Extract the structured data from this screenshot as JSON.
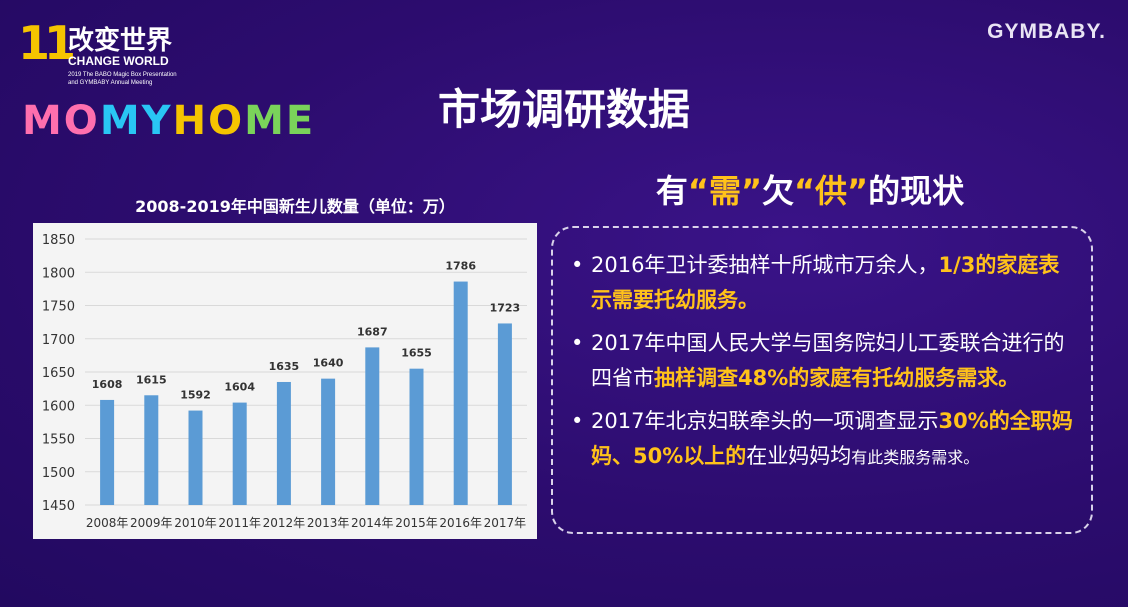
{
  "logo": {
    "number": "11",
    "cn_title": "改变世界",
    "en_title": "CHANGE WORLD",
    "sub_line1": "2019 The BABO Magic Box Presentation",
    "sub_line2": "and GYMBABY Annual Meeting",
    "momy_parts": [
      "MO",
      "MY",
      "HO",
      "ME"
    ],
    "colors": [
      "#ff6fae",
      "#29c6f4",
      "#f5c400",
      "#7ad35a"
    ]
  },
  "brand": "GYMBABY.",
  "main_title": "市场调研数据",
  "chart_data": {
    "type": "bar",
    "title": "2008-2019年中国新生儿数量（单位：万）",
    "categories": [
      "2008年",
      "2009年",
      "2010年",
      "2011年",
      "2012年",
      "2013年",
      "2014年",
      "2015年",
      "2016年",
      "2017年"
    ],
    "values": [
      1608,
      1615,
      1592,
      1604,
      1635,
      1640,
      1687,
      1655,
      1786,
      1723
    ],
    "yticks": [
      1450,
      1500,
      1550,
      1600,
      1650,
      1700,
      1750,
      1800,
      1850
    ],
    "ylim": [
      1450,
      1850
    ],
    "grid": true,
    "bar_color": "#5b9bd5"
  },
  "sub_heading": {
    "prefix": "有",
    "q1": "“需”",
    "middle": "欠",
    "q2": "“供”",
    "suffix": "的现状"
  },
  "bullets": [
    {
      "parts": [
        {
          "text": "2016年卫计委抽样十所城市万余人，",
          "style": "normal"
        },
        {
          "text": "1/3的家庭表示需要托幼服务。",
          "style": "hl"
        }
      ]
    },
    {
      "parts": [
        {
          "text": "2017年中国人民大学与国务院妇儿工委联合进行的四省市",
          "style": "normal"
        },
        {
          "text": "抽样调查48%的家庭有托幼服务需求。",
          "style": "hl"
        }
      ]
    },
    {
      "parts": [
        {
          "text": "2017年北京妇联牵头的一项调查显示",
          "style": "normal"
        },
        {
          "text": "30%的全职妈妈、50%以上的",
          "style": "hl"
        },
        {
          "text": "在业妈妈均",
          "style": "normal"
        },
        {
          "text": "有此类服务需求。",
          "style": "small"
        }
      ]
    }
  ],
  "bullet_symbol": "•"
}
